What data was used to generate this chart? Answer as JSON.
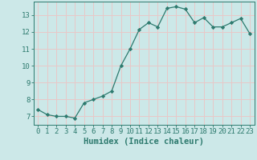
{
  "x": [
    0,
    1,
    2,
    3,
    4,
    5,
    6,
    7,
    8,
    9,
    10,
    11,
    12,
    13,
    14,
    15,
    16,
    17,
    18,
    19,
    20,
    21,
    22,
    23
  ],
  "y": [
    7.4,
    7.1,
    7.0,
    7.0,
    6.9,
    7.8,
    8.0,
    8.2,
    8.5,
    10.0,
    11.0,
    12.15,
    12.55,
    12.3,
    13.4,
    13.5,
    13.35,
    12.55,
    12.85,
    12.3,
    12.3,
    12.55,
    12.8,
    11.9
  ],
  "line_color": "#2d7a6e",
  "marker": "D",
  "marker_size": 2.2,
  "xlabel": "Humidex (Indice chaleur)",
  "xlim": [
    -0.5,
    23.5
  ],
  "ylim": [
    6.5,
    13.8
  ],
  "yticks": [
    7,
    8,
    9,
    10,
    11,
    12,
    13
  ],
  "xticks": [
    0,
    1,
    2,
    3,
    4,
    5,
    6,
    7,
    8,
    9,
    10,
    11,
    12,
    13,
    14,
    15,
    16,
    17,
    18,
    19,
    20,
    21,
    22,
    23
  ],
  "background_color": "#cce8e8",
  "grid_color": "#e8c8c8",
  "tick_fontsize": 6.5,
  "xlabel_fontsize": 7.5,
  "linewidth": 0.9
}
